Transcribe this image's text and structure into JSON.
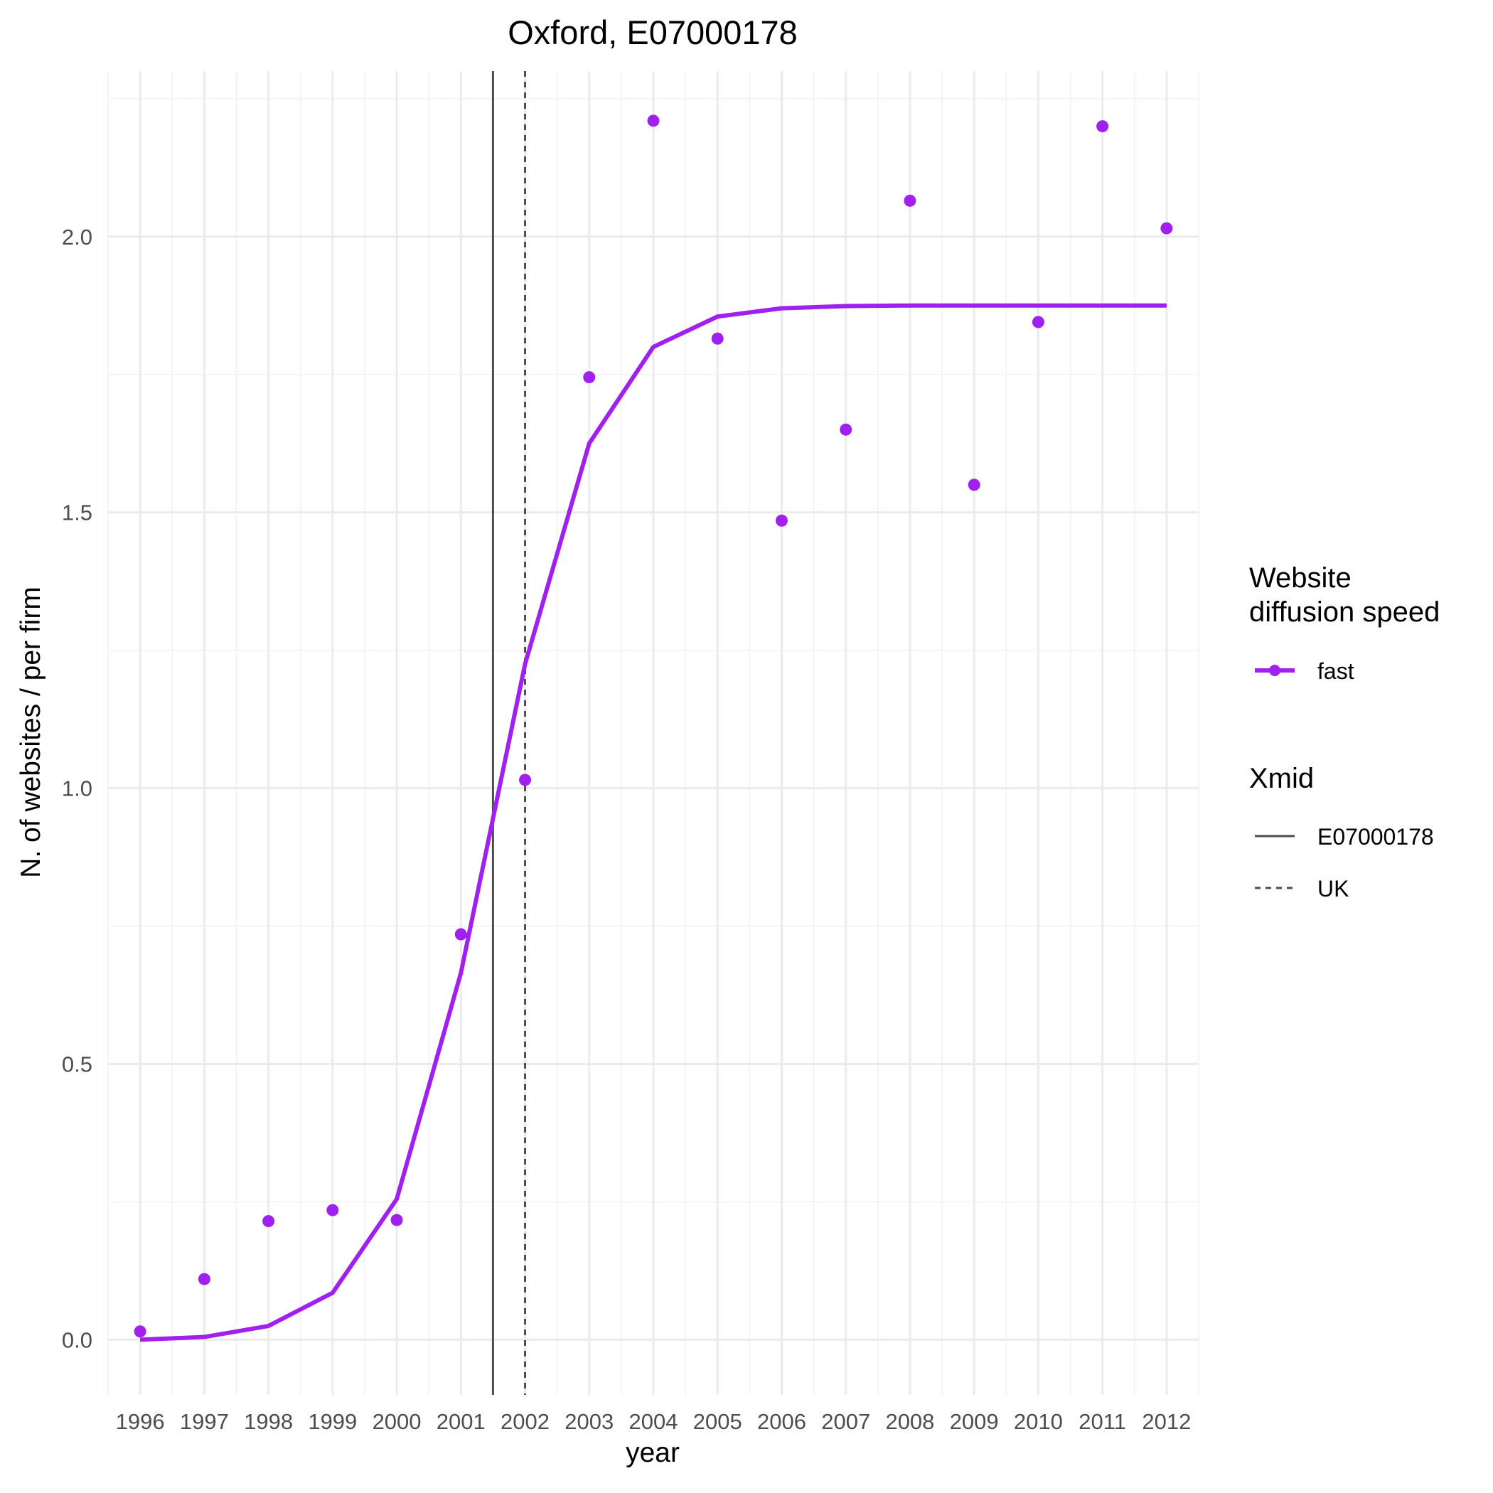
{
  "chart_data": {
    "type": "line",
    "title": "Oxford, E07000178",
    "xlabel": "year",
    "ylabel": "N. of websites / per firm",
    "xlim": [
      1995.5,
      2012.5
    ],
    "ylim": [
      -0.1,
      2.3
    ],
    "x_ticks": [
      1996,
      1997,
      1998,
      1999,
      2000,
      2001,
      2002,
      2003,
      2004,
      2005,
      2006,
      2007,
      2008,
      2009,
      2010,
      2011,
      2012
    ],
    "x_tick_labels": [
      "1996",
      "1997",
      "1998",
      "1999",
      "2000",
      "2001",
      "2002",
      "2003",
      "2004",
      "2005",
      "2006",
      "2007",
      "2008",
      "2009",
      "2010",
      "2011",
      "2012"
    ],
    "y_ticks": [
      0.0,
      0.5,
      1.0,
      1.5,
      2.0
    ],
    "y_tick_labels": [
      "0.0",
      "0.5",
      "1.0",
      "1.5",
      "2.0"
    ],
    "grid": true,
    "legend_position": "right",
    "colors": {
      "fast": "#a020f0",
      "xmid": "#4d4d4d"
    },
    "series": [
      {
        "name": "fast",
        "points_x": [
          1996,
          1997,
          1998,
          1999,
          2000,
          2001,
          2002,
          2003,
          2004,
          2005,
          2006,
          2007,
          2008,
          2009,
          2010,
          2011,
          2012
        ],
        "points_y": [
          0.015,
          0.11,
          0.215,
          0.235,
          0.217,
          0.735,
          1.015,
          1.745,
          2.21,
          1.815,
          1.485,
          1.65,
          2.065,
          1.55,
          1.845,
          2.2,
          2.015
        ],
        "fit_x": [
          1996,
          1997,
          1998,
          1999,
          2000,
          2001,
          2002,
          2003,
          2004,
          2005,
          2006,
          2007,
          2008,
          2009,
          2010,
          2011,
          2012
        ],
        "fit_y": [
          0.0,
          0.005,
          0.025,
          0.085,
          0.255,
          0.665,
          1.225,
          1.625,
          1.8,
          1.855,
          1.87,
          1.874,
          1.875,
          1.875,
          1.875,
          1.875,
          1.875
        ]
      }
    ],
    "vlines": [
      {
        "name": "E07000178",
        "x": 2001.5,
        "linetype": "solid"
      },
      {
        "name": "UK",
        "x": 2002.0,
        "linetype": "dashed"
      }
    ],
    "legend": {
      "speed_title_line1": "Website",
      "speed_title_line2": "diffusion speed",
      "speed_entries": [
        "fast"
      ],
      "xmid_title": "Xmid",
      "xmid_entries": [
        "E07000178",
        "UK"
      ]
    }
  }
}
